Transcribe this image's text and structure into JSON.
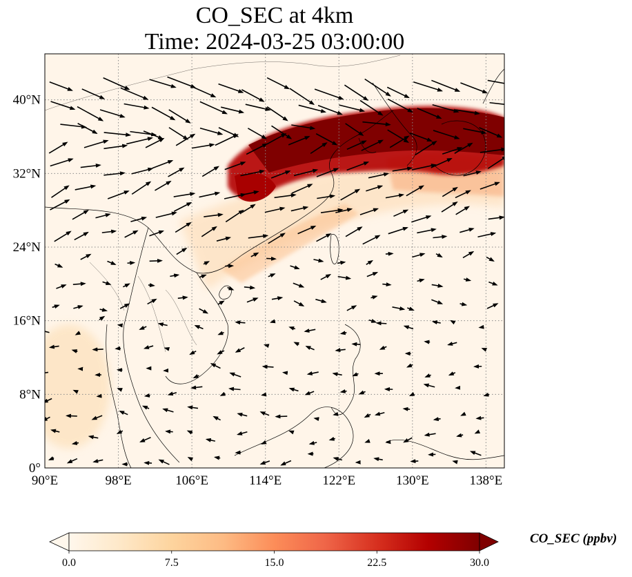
{
  "title": {
    "line1": "CO_SEC at 4km",
    "line2": "Time: 2024-03-25 03:00:00"
  },
  "map": {
    "extent": {
      "lon_min": 90,
      "lon_max": 140,
      "lat_min": 0,
      "lat_max": 45
    },
    "lon_ticks": [
      {
        "value": 90,
        "label": "90°E"
      },
      {
        "value": 98,
        "label": "98°E"
      },
      {
        "value": 106,
        "label": "106°E"
      },
      {
        "value": 114,
        "label": "114°E"
      },
      {
        "value": 122,
        "label": "122°E"
      },
      {
        "value": 130,
        "label": "130°E"
      },
      {
        "value": 138,
        "label": "138°E"
      }
    ],
    "lat_ticks": [
      {
        "value": 0,
        "label": "0°"
      },
      {
        "value": 8,
        "label": "8°N"
      },
      {
        "value": 16,
        "label": "16°N"
      },
      {
        "value": 24,
        "label": "24°N"
      },
      {
        "value": 32,
        "label": "32°N"
      },
      {
        "value": 40,
        "label": "40°N"
      }
    ],
    "gridlines": true,
    "variable": "CO_SEC",
    "wind_vectors": true
  },
  "colorbar": {
    "label": "CO_SEC (ppbv)",
    "colormap": "OrRd",
    "extend": "both",
    "min": 0.0,
    "max": 30.0,
    "ticks": [
      "0.0",
      "7.5",
      "15.0",
      "22.5",
      "30.0"
    ],
    "colors": [
      "#fff7ec",
      "#fee8c8",
      "#fdd49e",
      "#fdbb84",
      "#fc8d59",
      "#ef6548",
      "#d7301f",
      "#b30000",
      "#7f0000"
    ]
  }
}
